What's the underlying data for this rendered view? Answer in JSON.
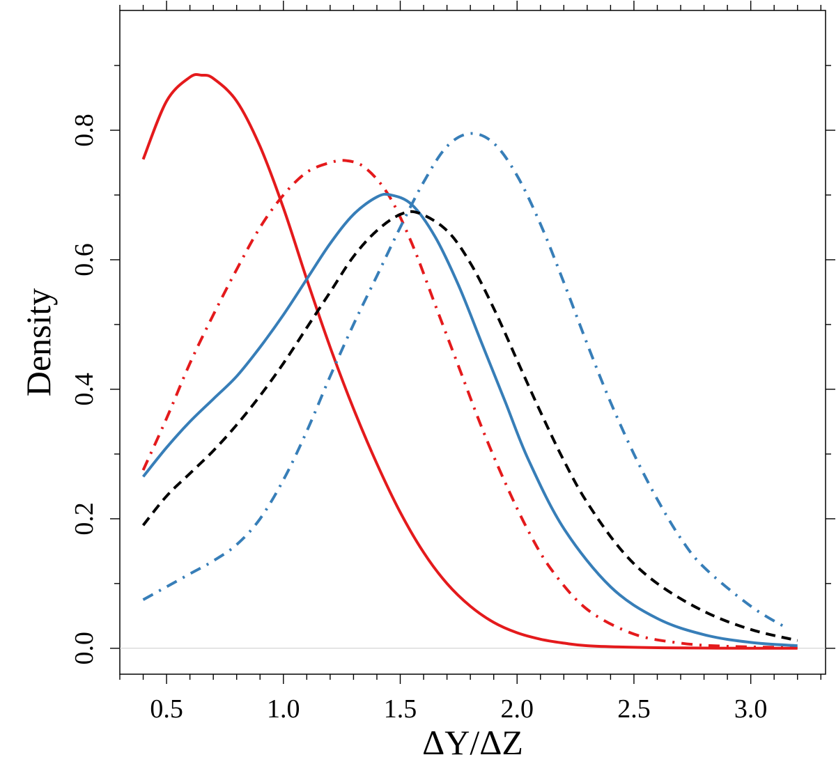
{
  "chart_data": {
    "type": "line",
    "title": "",
    "xlabel": "ΔY/ΔZ",
    "ylabel": "Density",
    "xlim": [
      0.3,
      3.32
    ],
    "ylim": [
      -0.04,
      0.985
    ],
    "x_ticks": [
      "0.5",
      "1.0",
      "1.5",
      "2.0",
      "2.5",
      "3.0"
    ],
    "y_ticks": [
      "0.0",
      "0.2",
      "0.4",
      "0.6",
      "0.8"
    ],
    "x_tick_values": [
      0.5,
      1.0,
      1.5,
      2.0,
      2.5,
      3.0
    ],
    "y_tick_values": [
      0.0,
      0.2,
      0.4,
      0.6,
      0.8
    ],
    "x_minor_step": 0.1,
    "y_minor_step": 0.1,
    "grid": false,
    "legend": "none",
    "colors": {
      "red": "#e41a1c",
      "blue": "#377eb8",
      "black": "#000000",
      "baseline": "#cccccc"
    },
    "series": [
      {
        "name": "red-solid",
        "color": "#e41a1c",
        "style": "solid",
        "x": [
          0.4,
          0.5,
          0.6,
          0.65,
          0.7,
          0.8,
          0.9,
          1.0,
          1.1,
          1.2,
          1.3,
          1.4,
          1.5,
          1.6,
          1.7,
          1.8,
          1.9,
          2.0,
          2.1,
          2.2,
          2.3,
          2.5,
          2.7,
          3.0,
          3.2
        ],
        "y": [
          0.755,
          0.845,
          0.882,
          0.885,
          0.88,
          0.845,
          0.775,
          0.68,
          0.57,
          0.465,
          0.37,
          0.285,
          0.21,
          0.148,
          0.1,
          0.065,
          0.04,
          0.024,
          0.014,
          0.008,
          0.004,
          0.0015,
          0.0005,
          0.0001,
          0.0
        ]
      },
      {
        "name": "red-dashdot",
        "color": "#e41a1c",
        "style": "dashdot",
        "x": [
          0.4,
          0.5,
          0.6,
          0.7,
          0.8,
          0.9,
          1.0,
          1.1,
          1.2,
          1.27,
          1.35,
          1.45,
          1.55,
          1.65,
          1.75,
          1.85,
          1.95,
          2.05,
          2.15,
          2.3,
          2.5,
          2.7,
          2.9,
          3.2
        ],
        "y": [
          0.275,
          0.355,
          0.44,
          0.515,
          0.585,
          0.65,
          0.7,
          0.735,
          0.75,
          0.753,
          0.742,
          0.7,
          0.625,
          0.53,
          0.435,
          0.34,
          0.255,
          0.18,
          0.12,
          0.06,
          0.022,
          0.008,
          0.003,
          0.001
        ]
      },
      {
        "name": "blue-solid",
        "color": "#377eb8",
        "style": "solid",
        "x": [
          0.4,
          0.5,
          0.6,
          0.7,
          0.8,
          0.9,
          1.0,
          1.1,
          1.2,
          1.3,
          1.4,
          1.46,
          1.55,
          1.65,
          1.75,
          1.85,
          1.95,
          2.05,
          2.2,
          2.4,
          2.6,
          2.8,
          3.0,
          3.2
        ],
        "y": [
          0.265,
          0.31,
          0.35,
          0.385,
          0.42,
          0.465,
          0.515,
          0.57,
          0.625,
          0.67,
          0.697,
          0.7,
          0.685,
          0.635,
          0.56,
          0.47,
          0.38,
          0.29,
          0.185,
          0.095,
          0.046,
          0.021,
          0.009,
          0.004
        ]
      },
      {
        "name": "black-dashed",
        "color": "#000000",
        "style": "dashed",
        "x": [
          0.4,
          0.5,
          0.6,
          0.7,
          0.8,
          0.9,
          1.0,
          1.1,
          1.2,
          1.3,
          1.4,
          1.5,
          1.58,
          1.7,
          1.8,
          1.9,
          2.0,
          2.1,
          2.2,
          2.3,
          2.45,
          2.6,
          2.8,
          3.0,
          3.2
        ],
        "y": [
          0.19,
          0.235,
          0.27,
          0.305,
          0.345,
          0.39,
          0.44,
          0.495,
          0.55,
          0.605,
          0.645,
          0.67,
          0.672,
          0.645,
          0.595,
          0.525,
          0.445,
          0.365,
          0.29,
          0.225,
          0.15,
          0.1,
          0.057,
          0.029,
          0.012
        ]
      },
      {
        "name": "blue-dashdot",
        "color": "#377eb8",
        "style": "dashdot",
        "x": [
          0.4,
          0.5,
          0.6,
          0.7,
          0.8,
          0.9,
          1.0,
          1.1,
          1.2,
          1.3,
          1.4,
          1.5,
          1.6,
          1.7,
          1.8,
          1.9,
          2.0,
          2.1,
          2.2,
          2.3,
          2.4,
          2.5,
          2.6,
          2.7,
          2.8,
          3.0,
          3.15
        ],
        "y": [
          0.075,
          0.095,
          0.115,
          0.135,
          0.16,
          0.2,
          0.26,
          0.335,
          0.42,
          0.5,
          0.575,
          0.65,
          0.72,
          0.775,
          0.795,
          0.78,
          0.73,
          0.655,
          0.565,
          0.47,
          0.38,
          0.3,
          0.23,
          0.17,
          0.125,
          0.065,
          0.032
        ]
      }
    ]
  }
}
